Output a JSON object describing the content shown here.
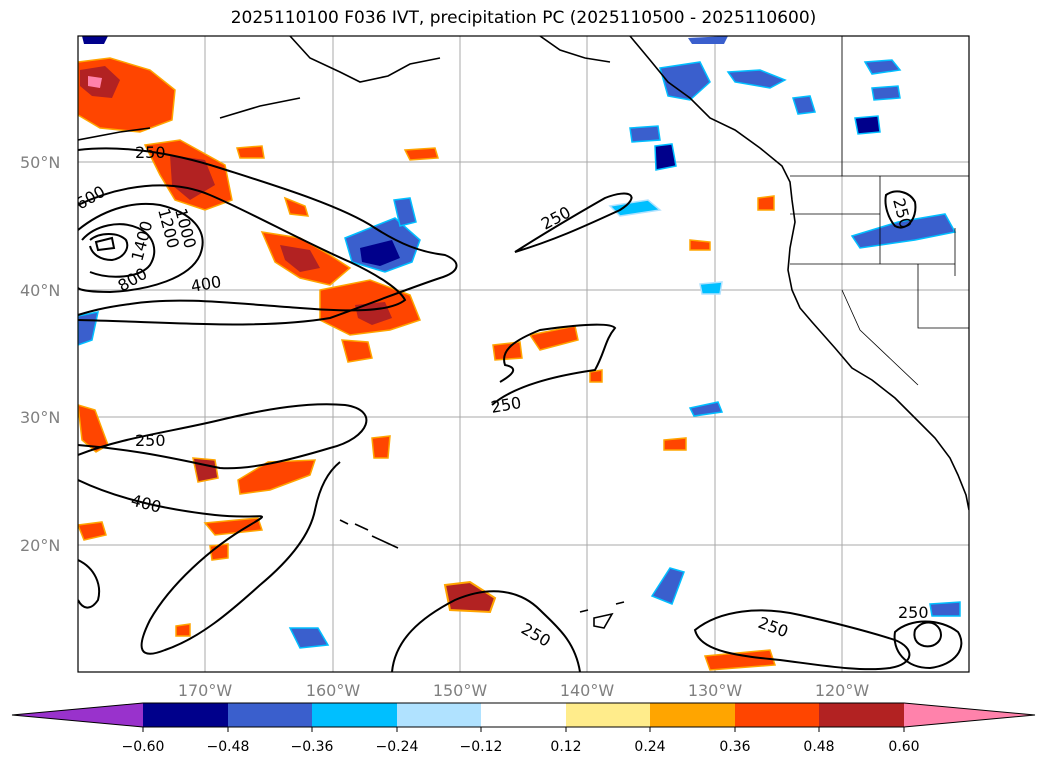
{
  "title": "2025110100 F036 IVT, precipitation PC (2025110500 - 2025110600)",
  "lat_labels": [
    "50°N",
    "40°N",
    "30°N",
    "20°N"
  ],
  "lon_labels": [
    "170°W",
    "160°W",
    "150°W",
    "140°W",
    "130°W",
    "120°W"
  ],
  "contour_labels": [
    "250",
    "600",
    "1200",
    "1000",
    "1400",
    "800",
    "400",
    "250",
    "250",
    "250",
    "250",
    "400",
    "250",
    "250",
    "250"
  ],
  "colorbar": {
    "colors": [
      "#9932cc",
      "#00008b",
      "#3a5fcd",
      "#00bfff",
      "#b0e2ff",
      "#ffffff",
      "#ffec8b",
      "#ffa500",
      "#ff4500",
      "#b22222",
      "#ff82ab"
    ],
    "ticks": [
      "−0.60",
      "−0.48",
      "−0.36",
      "−0.24",
      "−0.12",
      "0.12",
      "0.24",
      "0.36",
      "0.48",
      "0.60"
    ]
  }
}
